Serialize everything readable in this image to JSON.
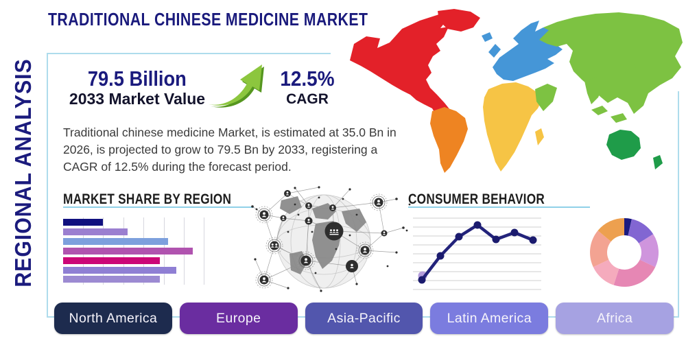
{
  "header": {
    "title": "TRADITIONAL CHINESE MEDICINE MARKET"
  },
  "sidebar_label": "REGIONAL ANALYSIS",
  "stats": {
    "market_value": "79.5 Billion",
    "market_value_label": "2033 Market Value",
    "cagr_value": "12.5%",
    "cagr_label": "CAGR",
    "growth_arrow_colors": {
      "front": "#8cc63e",
      "shadow": "#55961f"
    }
  },
  "description": "Traditional chinese medicine Market, is estimated at 35.0 Bn in 2026, is projected to grow to 79.5 Bn by 2033, registering a CAGR of 12.5% during the forecast period.",
  "sections": {
    "market_share_title": "MARKET SHARE BY REGION",
    "consumer_behavior_title": "CONSUMER BEHAVIOR"
  },
  "chart_data": [
    {
      "type": "bar",
      "title": "MARKET SHARE BY REGION",
      "orientation": "horizontal",
      "bars_unlabeled": true,
      "values_pct": [
        9.8,
        15.9,
        25.9,
        32.0,
        23.9,
        28.0,
        23.9
      ],
      "xlim": [
        0,
        37
      ],
      "grid": true,
      "colors": [
        "#10107f",
        "#9b7fd0",
        "#7da0dd",
        "#b053af",
        "#cc0677",
        "#8f7fd4",
        "#9c8ad2"
      ]
    },
    {
      "type": "line",
      "title": "CONSUMER BEHAVIOR",
      "points_unlabeled": true,
      "values": [
        1.4,
        4.9,
        7.7,
        9.4,
        7.3,
        8.3,
        7.2
      ],
      "ylim": [
        0,
        10
      ],
      "grid": "horizontal",
      "line_color": "#23237b",
      "marker_color": "#1b1b6e",
      "start_marker_color": "#b49ddb",
      "legend": "none"
    },
    {
      "type": "pie",
      "subtype": "donut",
      "slices_pct": [
        3.5,
        12.5,
        16,
        23,
        13,
        18,
        14
      ],
      "colors": [
        "#1b1b80",
        "#8266d2",
        "#cf95dd",
        "#e687b4",
        "#f5abbd",
        "#f3a392",
        "#eda04f"
      ],
      "legend": "none"
    }
  ],
  "region_buttons": [
    {
      "label": "North America",
      "color": "#1d2b4e"
    },
    {
      "label": "Europe",
      "color": "#6a2da0"
    },
    {
      "label": "Asia-Pacific",
      "color": "#5256ad"
    },
    {
      "label": "Latin America",
      "color": "#7b7cdf"
    },
    {
      "label": "Africa",
      "color": "#a6a2e2"
    }
  ],
  "map": {
    "continents": [
      {
        "name": "north-america",
        "color": "#e32129"
      },
      {
        "name": "greenland",
        "color": "#e32129"
      },
      {
        "name": "south-america",
        "color": "#ee8422"
      },
      {
        "name": "europe",
        "color": "#4596d7"
      },
      {
        "name": "united-kingdom",
        "color": "#4596d7"
      },
      {
        "name": "iceland",
        "color": "#4596d7"
      },
      {
        "name": "africa",
        "color": "#f6c445"
      },
      {
        "name": "madagascar",
        "color": "#f6c445"
      },
      {
        "name": "asia",
        "color": "#7dc242"
      },
      {
        "name": "arabia",
        "color": "#7dc242"
      },
      {
        "name": "india",
        "color": "#7dc242"
      },
      {
        "name": "japan",
        "color": "#7dc242"
      },
      {
        "name": "se-asia-1",
        "color": "#7dc242"
      },
      {
        "name": "se-asia-2",
        "color": "#7dc242"
      },
      {
        "name": "se-asia-3",
        "color": "#7dc242"
      },
      {
        "name": "australia",
        "color": "#1f9c49"
      },
      {
        "name": "new-zealand",
        "color": "#1f9c49"
      }
    ]
  },
  "frame_color": "#aedcec"
}
